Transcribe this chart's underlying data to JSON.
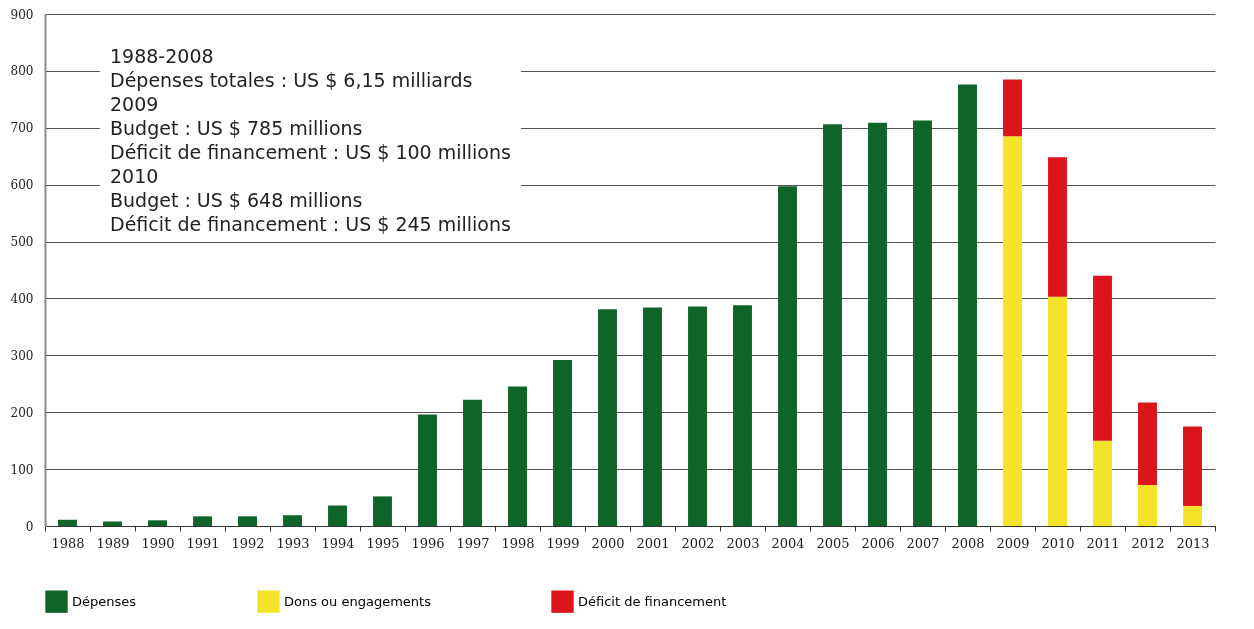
{
  "chart_data": {
    "type": "bar",
    "stacked": true,
    "categories": [
      "1988",
      "1989",
      "1990",
      "1991",
      "1992",
      "1993",
      "1994",
      "1995",
      "1996",
      "1997",
      "1998",
      "1999",
      "2000",
      "2001",
      "2002",
      "2003",
      "2004",
      "2005",
      "2006",
      "2007",
      "2008",
      "2009",
      "2010",
      "2011",
      "2012",
      "2013"
    ],
    "series": [
      {
        "name": "Dépenses",
        "color": "#0e6429",
        "values": [
          11,
          8,
          10,
          17,
          17,
          19,
          36,
          52,
          196,
          222,
          245,
          292,
          381,
          384,
          386,
          388,
          597,
          706,
          709,
          713,
          776,
          null,
          null,
          null,
          null,
          null
        ]
      },
      {
        "name": "Dons ou engagements",
        "color": "#f3e42a",
        "values": [
          null,
          null,
          null,
          null,
          null,
          null,
          null,
          null,
          null,
          null,
          null,
          null,
          null,
          null,
          null,
          null,
          null,
          null,
          null,
          null,
          null,
          685,
          403,
          150,
          72,
          35
        ]
      },
      {
        "name": "Déficit de financement",
        "color": "#dc151c",
        "values": [
          null,
          null,
          null,
          null,
          null,
          null,
          null,
          null,
          null,
          null,
          null,
          null,
          null,
          null,
          null,
          null,
          null,
          null,
          null,
          null,
          null,
          100,
          245,
          290,
          145,
          140
        ]
      }
    ],
    "ylim": [
      0,
      900
    ],
    "yticks": [
      0,
      100,
      200,
      300,
      400,
      500,
      600,
      700,
      800,
      900
    ],
    "grid": "y",
    "legend": "bottom",
    "annotations": [
      "1988-2008",
      "Dépenses totales : US $ 6,15 milliards",
      "2009",
      "Budget : US $ 785 millions",
      "Déficit de financement : US $ 100 millions",
      "2010",
      "Budget : US $ 648 millions",
      "Déficit de financement : US $ 245 millions"
    ]
  }
}
